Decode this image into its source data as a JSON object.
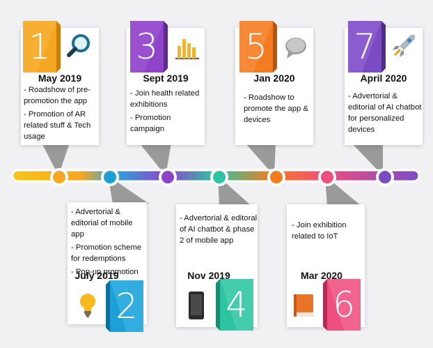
{
  "milestones": [
    {
      "number": "1",
      "date": "May 2019",
      "icon": "magnifier-icon",
      "color": "#f5a623",
      "items": [
        "- Roadshow of pre-promotion the app",
        "- Promotion of AR related stuff & Tech usage"
      ]
    },
    {
      "number": "2",
      "date": "July 2019",
      "icon": "lightbulb-icon",
      "color": "#1ea0d7",
      "items": [
        "- Advertorial & editorial of mobile app",
        "- Promotion scheme for redemptions",
        "- Pop-up promotion"
      ]
    },
    {
      "number": "3",
      "date": "Sept 2019",
      "icon": "bar-chart-icon",
      "color": "#8e44c9",
      "items": [
        "- Join health related exhibitions",
        "- Promotion campaign"
      ]
    },
    {
      "number": "4",
      "date": "Nov 2019",
      "icon": "smartphone-icon",
      "color": "#2ec4a1",
      "items": [
        "- Advertorial & editoral of AI chatbot & phase 2 of mobile app"
      ]
    },
    {
      "number": "5",
      "date": "Jan 2020",
      "icon": "speech-bubble-icon",
      "color": "#f47c20",
      "items": [
        "- Roadshow to promote the app & devices"
      ]
    },
    {
      "number": "6",
      "date": "Mar 2020",
      "icon": "book-icon",
      "color": "#ee4f7e",
      "items": [
        "- Join exhibition related to IoT"
      ]
    },
    {
      "number": "7",
      "date": "April 2020",
      "icon": "rocket-icon",
      "color": "#7b4bc4",
      "items": [
        "- Advertorial & editorial of AI chatbot for personalized devices"
      ]
    }
  ]
}
